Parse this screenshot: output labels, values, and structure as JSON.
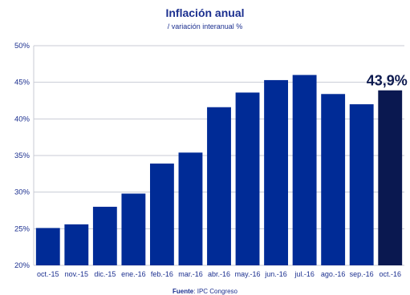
{
  "chart_data": {
    "type": "bar",
    "title": "Inflación anual",
    "subtitle": "/ variación interanual %",
    "categories": [
      "oct.-15",
      "nov.-15",
      "dic.-15",
      "ene.-16",
      "feb.-16",
      "mar.-16",
      "abr.-16",
      "may.-16",
      "jun.-16",
      "jul.-16",
      "ago.-16",
      "sep.-16",
      "oct.-16"
    ],
    "values": [
      25.1,
      25.6,
      28.0,
      29.8,
      33.9,
      35.4,
      41.6,
      43.6,
      45.3,
      46.0,
      43.4,
      42.0,
      43.9
    ],
    "ylim": [
      20,
      50
    ],
    "yticks": [
      20,
      25,
      30,
      35,
      40,
      45,
      50
    ],
    "ytick_labels": [
      "20%",
      "25%",
      "30%",
      "35%",
      "40%",
      "45%",
      "50%"
    ],
    "grid": true,
    "highlight_label": "43,9%",
    "highlight_index": 12
  },
  "colors": {
    "bar": "#002b96",
    "highlight_bar": "#0a1850",
    "grid": "#c8cbd4",
    "text": "#1b2f8f"
  },
  "source": {
    "label": "Fuente",
    "text": "IPC Congreso"
  }
}
